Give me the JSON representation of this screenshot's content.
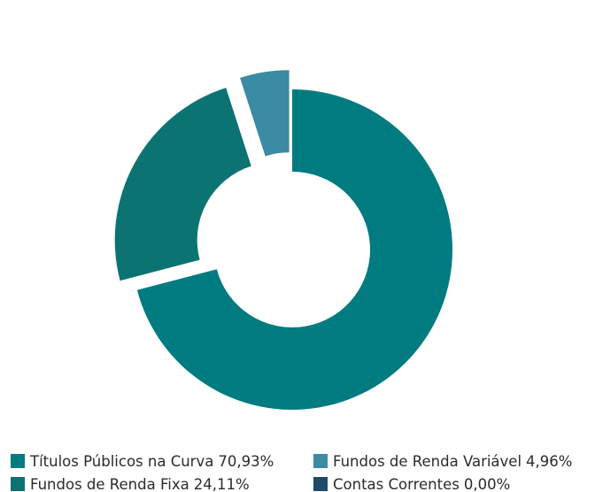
{
  "chart_data": {
    "type": "donut",
    "categories": [
      "Títulos Públicos na Curva",
      "Fundos de Renda Fixa",
      "Fundos de Renda Variável",
      "Contas Correntes"
    ],
    "values": [
      70.93,
      24.11,
      4.96,
      0
    ],
    "value_labels": [
      "70,93%",
      "24,11%",
      "4,96%",
      "0,00%"
    ],
    "colors": [
      "#007b80",
      "#0b7472",
      "#3b8ba2",
      "#1f4b69"
    ],
    "explode": [
      false,
      true,
      true,
      false
    ]
  }
}
